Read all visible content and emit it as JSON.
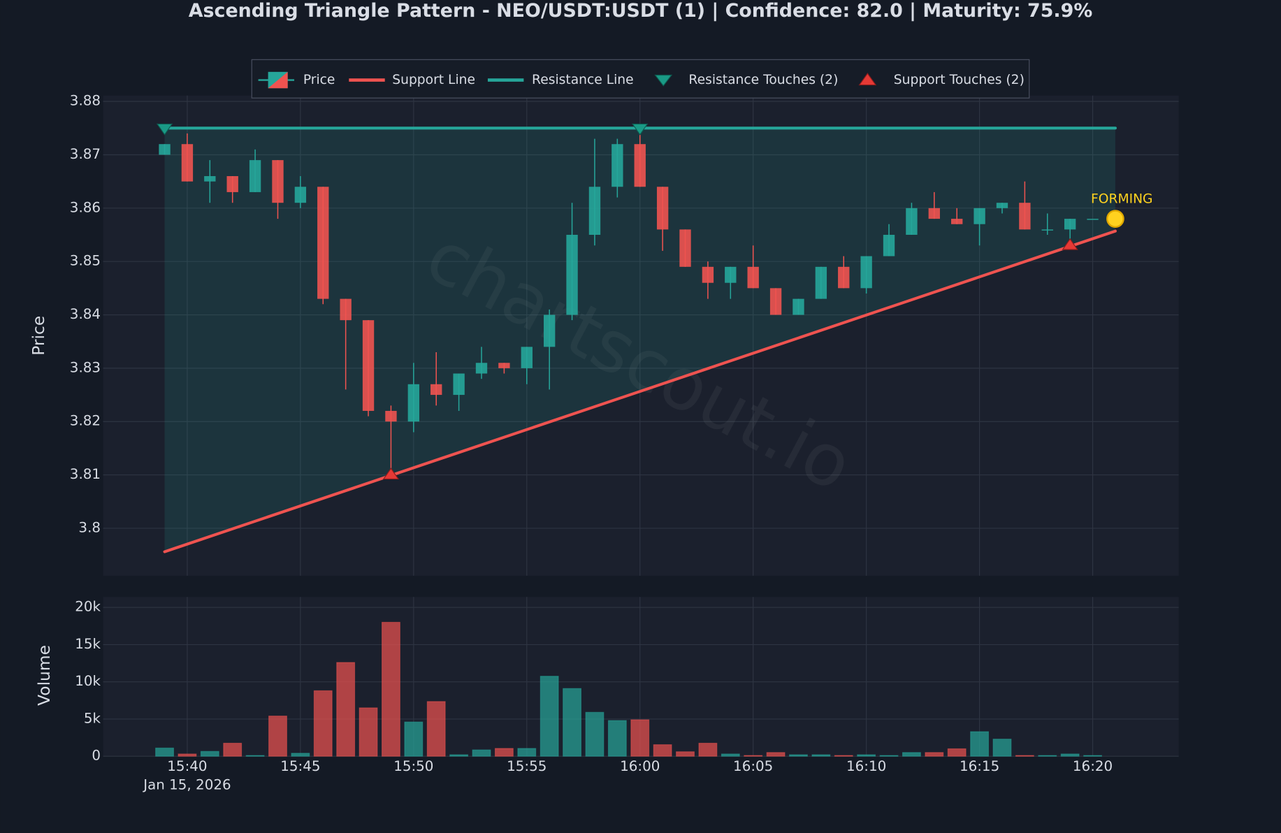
{
  "chart_data": [
    {
      "type": "candlestick",
      "title": "Ascending Triangle Pattern - NEO/USDT:USDT (1) | Confidence: 82.0 | Maturity: 75.9%",
      "name": "Price",
      "ylabel": "Price",
      "watermark": "chartscout.io",
      "x": [
        "2026-01-15 15:39",
        "2026-01-15 15:40",
        "2026-01-15 15:41",
        "2026-01-15 15:42",
        "2026-01-15 15:43",
        "2026-01-15 15:44",
        "2026-01-15 15:45",
        "2026-01-15 15:46",
        "2026-01-15 15:47",
        "2026-01-15 15:48",
        "2026-01-15 15:49",
        "2026-01-15 15:50",
        "2026-01-15 15:51",
        "2026-01-15 15:52",
        "2026-01-15 15:53",
        "2026-01-15 15:54",
        "2026-01-15 15:55",
        "2026-01-15 15:56",
        "2026-01-15 15:57",
        "2026-01-15 15:58",
        "2026-01-15 15:59",
        "2026-01-15 16:00",
        "2026-01-15 16:01",
        "2026-01-15 16:02",
        "2026-01-15 16:03",
        "2026-01-15 16:04",
        "2026-01-15 16:05",
        "2026-01-15 16:06",
        "2026-01-15 16:07",
        "2026-01-15 16:08",
        "2026-01-15 16:09",
        "2026-01-15 16:10",
        "2026-01-15 16:11",
        "2026-01-15 16:12",
        "2026-01-15 16:13",
        "2026-01-15 16:14",
        "2026-01-15 16:15",
        "2026-01-15 16:16",
        "2026-01-15 16:17",
        "2026-01-15 16:18",
        "2026-01-15 16:19",
        "2026-01-15 16:20"
      ],
      "open": [
        3.87,
        3.872,
        3.865,
        3.866,
        3.863,
        3.869,
        3.861,
        3.864,
        3.843,
        3.839,
        3.822,
        3.82,
        3.827,
        3.825,
        3.829,
        3.831,
        3.83,
        3.834,
        3.84,
        3.855,
        3.864,
        3.872,
        3.864,
        3.856,
        3.849,
        3.846,
        3.849,
        3.845,
        3.84,
        3.843,
        3.849,
        3.845,
        3.851,
        3.855,
        3.86,
        3.858,
        3.857,
        3.86,
        3.861,
        3.856,
        3.856,
        3.858
      ],
      "high": [
        3.872,
        3.874,
        3.869,
        3.866,
        3.871,
        3.869,
        3.866,
        3.864,
        3.843,
        3.839,
        3.823,
        3.831,
        3.833,
        3.829,
        3.834,
        3.831,
        3.834,
        3.841,
        3.861,
        3.873,
        3.873,
        3.875,
        3.864,
        3.856,
        3.85,
        3.849,
        3.853,
        3.845,
        3.843,
        3.849,
        3.851,
        3.851,
        3.857,
        3.861,
        3.863,
        3.86,
        3.86,
        3.861,
        3.865,
        3.859,
        3.858,
        3.858
      ],
      "low": [
        3.87,
        3.865,
        3.861,
        3.861,
        3.863,
        3.858,
        3.86,
        3.842,
        3.826,
        3.821,
        3.81,
        3.818,
        3.823,
        3.822,
        3.828,
        3.829,
        3.827,
        3.826,
        3.839,
        3.853,
        3.862,
        3.864,
        3.852,
        3.849,
        3.843,
        3.843,
        3.845,
        3.84,
        3.84,
        3.843,
        3.845,
        3.844,
        3.851,
        3.855,
        3.858,
        3.857,
        3.853,
        3.859,
        3.856,
        3.855,
        3.853,
        3.858
      ],
      "close": [
        3.872,
        3.865,
        3.866,
        3.863,
        3.869,
        3.861,
        3.864,
        3.843,
        3.839,
        3.822,
        3.82,
        3.827,
        3.825,
        3.829,
        3.831,
        3.83,
        3.834,
        3.84,
        3.855,
        3.864,
        3.872,
        3.864,
        3.856,
        3.849,
        3.846,
        3.849,
        3.845,
        3.84,
        3.843,
        3.849,
        3.845,
        3.851,
        3.855,
        3.86,
        3.858,
        3.857,
        3.86,
        3.861,
        3.856,
        3.856,
        3.858,
        3.858
      ],
      "up_color": "#26a69a",
      "down_color": "#ef5350",
      "xlim": [
        "2026-01-15 15:36:17",
        "2026-01-15 16:23:48"
      ],
      "ylim": [
        3.7911,
        3.8811
      ],
      "yticks": [
        3.8,
        3.81,
        3.82,
        3.83,
        3.84,
        3.85,
        3.86,
        3.87,
        3.88
      ],
      "grid": true,
      "legend": "top",
      "support_line": {
        "name": "Support Line",
        "color": "#ef5350",
        "x": [
          "2026-01-15 15:39",
          "2026-01-15 16:21"
        ],
        "y": [
          3.7956,
          3.8557
        ]
      },
      "resistance_line": {
        "name": "Resistance Line",
        "color": "#26a69a",
        "x": [
          "2026-01-15 15:39",
          "2026-01-15 16:21"
        ],
        "y": [
          3.875,
          3.875
        ]
      },
      "resistance_touches": {
        "name": "Resistance Touches (2)",
        "color": "#26a69a",
        "x": [
          "2026-01-15 15:39",
          "2026-01-15 16:00"
        ],
        "y": [
          3.875,
          3.875
        ]
      },
      "support_touches": {
        "name": "Support Touches (2)",
        "color": "#ef5350",
        "x": [
          "2026-01-15 15:49",
          "2026-01-15 16:19"
        ],
        "y": [
          3.81,
          3.853
        ]
      },
      "forming": {
        "label": "FORMING",
        "color": "#ffd21f",
        "x": "2026-01-15 16:21",
        "y": 3.858
      }
    },
    {
      "type": "bar",
      "ylabel": "Volume",
      "values": [
        1100,
        300,
        650,
        1750,
        100,
        5400,
        400,
        8800,
        12600,
        6500,
        18000,
        4600,
        7350,
        200,
        850,
        1050,
        1050,
        10750,
        9100,
        5900,
        4800,
        4900,
        1550,
        600,
        1750,
        300,
        100,
        500,
        200,
        200,
        100,
        200,
        100,
        500,
        500,
        1000,
        3300,
        2300,
        100,
        100,
        300,
        100
      ],
      "ylim": [
        0,
        21400
      ],
      "yticks": [
        0,
        {
          "value": 5000,
          "label": "5k"
        },
        {
          "value": 10000,
          "label": "10k"
        },
        {
          "value": 15000,
          "label": "15k"
        },
        {
          "value": 20000,
          "label": "20k"
        }
      ],
      "xticks": [
        {
          "value": "2026-01-15 15:40",
          "label": "15:40"
        },
        {
          "value": "2026-01-15 15:45",
          "label": "15:45"
        },
        {
          "value": "2026-01-15 15:50",
          "label": "15:50"
        },
        {
          "value": "2026-01-15 15:55",
          "label": "15:55"
        },
        {
          "value": "2026-01-15 16:00",
          "label": "16:00"
        },
        {
          "value": "2026-01-15 16:05",
          "label": "16:05"
        },
        {
          "value": "2026-01-15 16:10",
          "label": "16:10"
        },
        {
          "value": "2026-01-15 16:15",
          "label": "16:15"
        },
        {
          "value": "2026-01-15 16:20",
          "label": "16:20"
        }
      ],
      "xtick_date": "Jan 15, 2026",
      "grid": true
    }
  ]
}
